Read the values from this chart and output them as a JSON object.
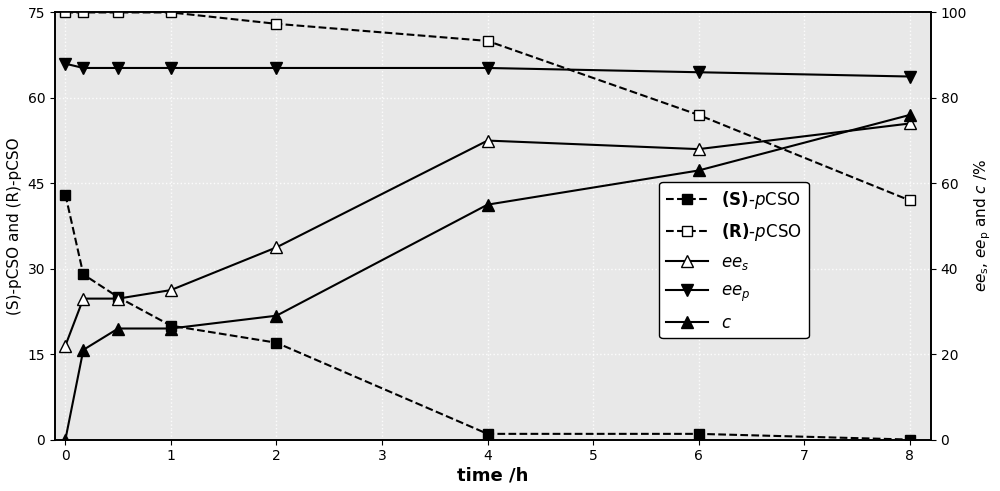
{
  "time_main": [
    0,
    0.17,
    0.5,
    1,
    2,
    4,
    6,
    8
  ],
  "S_pCSO": [
    43,
    29,
    25,
    20,
    17,
    1,
    1,
    0
  ],
  "R_pCSO": [
    75,
    75,
    75,
    75,
    73,
    70,
    57,
    42
  ],
  "time_right": [
    0,
    0.17,
    0.5,
    1,
    2,
    4,
    6,
    8
  ],
  "ee_s": [
    22,
    33,
    33,
    35,
    45,
    70,
    68,
    74
  ],
  "ee_p": [
    88,
    87,
    87,
    87,
    87,
    87,
    86,
    85
  ],
  "c": [
    0,
    21,
    26,
    26,
    29,
    55,
    63,
    76
  ],
  "ylabel_left": "(S)-pCSO and (R)-pCSO",
  "ylabel_right": "ee$_{s}$, ee$_{p}$ and c /%",
  "xlabel": "time /h",
  "ylim_left": [
    0,
    75
  ],
  "ylim_right": [
    0,
    100
  ],
  "xlim": [
    -0.1,
    8.2
  ],
  "yticks_left": [
    0,
    15,
    30,
    45,
    60,
    75
  ],
  "yticks_right": [
    0,
    20,
    40,
    60,
    80,
    100
  ],
  "xticks": [
    0,
    1,
    2,
    3,
    4,
    5,
    6,
    7,
    8
  ],
  "bg_color": "#e8e8e8"
}
